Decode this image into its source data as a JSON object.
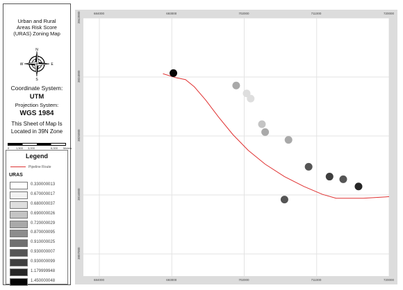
{
  "sidebar": {
    "title": [
      "Urban and Rural",
      "Areas Risk Score",
      "(URAS) Zoning Map"
    ],
    "compass": {
      "n": "N",
      "s": "S",
      "e": "E",
      "w": "W"
    },
    "coord_system_label": "Coordinate System:",
    "coord_system": "UTM",
    "projection_label": "Projection System:",
    "projection": "WGS 1984",
    "sheet_line1": "This Sheet of Map Is",
    "sheet_line2": "Located in 39N Zone",
    "scale_labels": [
      "0",
      "1,500",
      "3,000",
      "6,000",
      "Meters"
    ]
  },
  "legend": {
    "title": "Legend",
    "pipeline_label": "Pipeline Route",
    "uras_label": "URAS",
    "items": [
      {
        "value": "0.330000013",
        "color": "#ffffff"
      },
      {
        "value": "0.670000017",
        "color": "#f2f2f2"
      },
      {
        "value": "0.680000037",
        "color": "#dedede"
      },
      {
        "value": "0.690000026",
        "color": "#c4c4c4"
      },
      {
        "value": "0.720000029",
        "color": "#a9a9a9"
      },
      {
        "value": "0.870000095",
        "color": "#8c8c8c"
      },
      {
        "value": "0.910000025",
        "color": "#707070"
      },
      {
        "value": "0.930000007",
        "color": "#555555"
      },
      {
        "value": "0.930000099",
        "color": "#3e3e3e"
      },
      {
        "value": "1.179999948",
        "color": "#262626"
      },
      {
        "value": "1.450000048",
        "color": "#050505"
      }
    ]
  },
  "map": {
    "top_ticks": [
      "684000",
      "693000",
      "702000",
      "711000",
      "720000"
    ],
    "bottom_ticks": [
      "684000",
      "693000",
      "702000",
      "711000",
      "720000"
    ],
    "left_ticks": [
      "3843000",
      "3834000",
      "3825000",
      "3816000",
      "3807000"
    ],
    "pipeline_color": "#e03030",
    "sites": [
      {
        "x": 693200,
        "y": 3834600,
        "class": 10
      },
      {
        "x": 701000,
        "y": 3832700,
        "class": 4
      },
      {
        "x": 702300,
        "y": 3831500,
        "class": 2
      },
      {
        "x": 702800,
        "y": 3830700,
        "class": 2
      },
      {
        "x": 704200,
        "y": 3826800,
        "class": 3
      },
      {
        "x": 704600,
        "y": 3825600,
        "class": 4
      },
      {
        "x": 707500,
        "y": 3824400,
        "class": 4
      },
      {
        "x": 710000,
        "y": 3820300,
        "class": 7
      },
      {
        "x": 712600,
        "y": 3818800,
        "class": 8
      },
      {
        "x": 714300,
        "y": 3818400,
        "class": 7
      },
      {
        "x": 716200,
        "y": 3817300,
        "class": 9
      },
      {
        "x": 707000,
        "y": 3815300,
        "class": 7
      }
    ],
    "pipeline": [
      [
        691900,
        3834500
      ],
      [
        693500,
        3833900
      ],
      [
        694700,
        3833600
      ],
      [
        695800,
        3832500
      ],
      [
        697200,
        3830500
      ],
      [
        698800,
        3827900
      ],
      [
        700600,
        3825200
      ],
      [
        702500,
        3822800
      ],
      [
        704600,
        3820700
      ],
      [
        707000,
        3818800
      ],
      [
        709400,
        3817300
      ],
      [
        711700,
        3816100
      ],
      [
        713400,
        3815500
      ],
      [
        716800,
        3815500
      ],
      [
        719500,
        3815700
      ],
      [
        720500,
        3815800
      ]
    ]
  }
}
